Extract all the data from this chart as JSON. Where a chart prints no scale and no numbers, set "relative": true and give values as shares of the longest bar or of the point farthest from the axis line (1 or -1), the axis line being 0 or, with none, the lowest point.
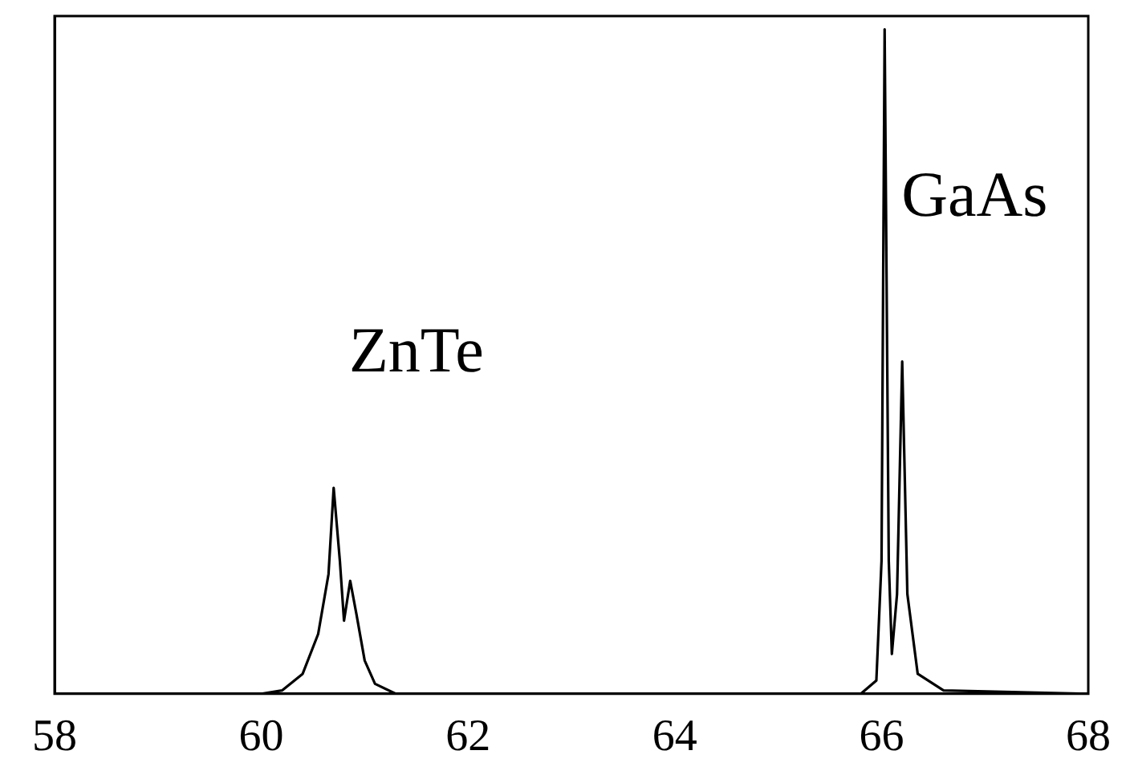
{
  "chart_data": {
    "type": "line",
    "relative": true,
    "x": [
      58,
      60.0,
      60.2,
      60.4,
      60.55,
      60.65,
      60.7,
      60.76,
      60.8,
      60.86,
      60.92,
      61.0,
      61.1,
      61.3,
      65.8,
      65.95,
      66.0,
      66.03,
      66.07,
      66.1,
      66.15,
      66.2,
      66.25,
      66.35,
      66.6,
      68
    ],
    "series": [
      {
        "color": "#000000",
        "values": [
          0,
          0,
          0.005,
          0.03,
          0.09,
          0.18,
          0.31,
          0.2,
          0.11,
          0.17,
          0.12,
          0.05,
          0.015,
          0,
          0,
          0.02,
          0.2,
          1,
          0.2,
          0.06,
          0.15,
          0.5,
          0.15,
          0.03,
          0.005,
          0
        ]
      }
    ],
    "xlim": [
      58,
      68
    ],
    "xticks": [
      58,
      60,
      62,
      64,
      66,
      68
    ],
    "grid": false,
    "legend": false,
    "marker": "none",
    "line_style": "solid",
    "annotations": [
      "ZnTe",
      "GaAs"
    ]
  }
}
